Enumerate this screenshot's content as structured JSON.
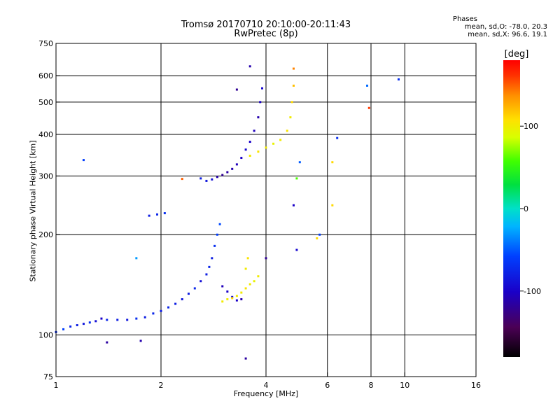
{
  "header": {
    "title_line1": "Tromsø 20170710 20:10:00-20:11:43",
    "title_line2": "RwPretec (8p)"
  },
  "stats": {
    "heading": "Phases",
    "line_o": "mean, sd,O: -78.0, 20.3",
    "line_x": "mean, sd,X:  96.6, 19.1"
  },
  "colorbar": {
    "unit": "[deg]",
    "range": [
      -180,
      180
    ],
    "ticks": [
      {
        "value": 100,
        "label": "100"
      },
      {
        "value": 0,
        "label": "0"
      },
      {
        "value": -100,
        "label": "-100"
      }
    ]
  },
  "chart_data": {
    "type": "scatter",
    "xlabel": "Frequency [MHz]",
    "ylabel": "Stationary phase Virtual Height [km]",
    "xscale": "log",
    "yscale": "log",
    "xlim": [
      1,
      16
    ],
    "ylim": [
      75,
      750
    ],
    "grid": true,
    "x_ticks": [
      {
        "value": 1,
        "label": "1"
      },
      {
        "value": 2,
        "label": "2"
      },
      {
        "value": 4,
        "label": "4"
      },
      {
        "value": 6,
        "label": "6"
      },
      {
        "value": 8,
        "label": "8"
      },
      {
        "value": 10,
        "label": "10"
      },
      {
        "value": 16,
        "label": "16"
      }
    ],
    "y_ticks": [
      {
        "value": 75,
        "label": "75"
      },
      {
        "value": 100,
        "label": "100"
      },
      {
        "value": 200,
        "label": "200"
      },
      {
        "value": 300,
        "label": "300"
      },
      {
        "value": 400,
        "label": "400"
      },
      {
        "value": 500,
        "label": "500"
      },
      {
        "value": 600,
        "label": "600"
      },
      {
        "value": 750,
        "label": "750"
      }
    ],
    "x_gridlines": [
      2,
      4,
      6,
      8,
      10
    ],
    "y_gridlines": [
      100,
      200,
      300,
      400,
      500,
      600
    ],
    "points": [
      {
        "x": 1.0,
        "y": 102,
        "phase": -70
      },
      {
        "x": 1.05,
        "y": 104,
        "phase": -60
      },
      {
        "x": 1.1,
        "y": 106,
        "phase": -75
      },
      {
        "x": 1.15,
        "y": 107,
        "phase": -80
      },
      {
        "x": 1.2,
        "y": 108,
        "phase": -85
      },
      {
        "x": 1.25,
        "y": 109,
        "phase": -70
      },
      {
        "x": 1.3,
        "y": 110,
        "phase": -90
      },
      {
        "x": 1.35,
        "y": 112,
        "phase": -100
      },
      {
        "x": 1.4,
        "y": 111,
        "phase": -75
      },
      {
        "x": 1.5,
        "y": 111,
        "phase": -80
      },
      {
        "x": 1.6,
        "y": 111,
        "phase": -85
      },
      {
        "x": 1.7,
        "y": 112,
        "phase": -70
      },
      {
        "x": 1.8,
        "y": 113,
        "phase": -80
      },
      {
        "x": 1.9,
        "y": 116,
        "phase": -75
      },
      {
        "x": 2.0,
        "y": 118,
        "phase": -80
      },
      {
        "x": 2.1,
        "y": 121,
        "phase": -75
      },
      {
        "x": 2.2,
        "y": 124,
        "phase": -80
      },
      {
        "x": 2.3,
        "y": 128,
        "phase": -85
      },
      {
        "x": 2.4,
        "y": 133,
        "phase": -80
      },
      {
        "x": 2.5,
        "y": 138,
        "phase": -75
      },
      {
        "x": 2.6,
        "y": 145,
        "phase": -90
      },
      {
        "x": 2.7,
        "y": 152,
        "phase": -80
      },
      {
        "x": 2.75,
        "y": 160,
        "phase": -75
      },
      {
        "x": 2.8,
        "y": 170,
        "phase": -80
      },
      {
        "x": 2.85,
        "y": 185,
        "phase": -70
      },
      {
        "x": 2.9,
        "y": 200,
        "phase": -60
      },
      {
        "x": 2.95,
        "y": 215,
        "phase": -55
      },
      {
        "x": 3.0,
        "y": 140,
        "phase": -105
      },
      {
        "x": 3.1,
        "y": 135,
        "phase": -100
      },
      {
        "x": 3.2,
        "y": 130,
        "phase": -95
      },
      {
        "x": 3.3,
        "y": 127,
        "phase": -100
      },
      {
        "x": 3.4,
        "y": 128,
        "phase": -110
      },
      {
        "x": 3.0,
        "y": 126,
        "phase": 100
      },
      {
        "x": 3.1,
        "y": 128,
        "phase": 100
      },
      {
        "x": 3.2,
        "y": 129,
        "phase": 110
      },
      {
        "x": 3.3,
        "y": 131,
        "phase": 100
      },
      {
        "x": 3.4,
        "y": 134,
        "phase": 100
      },
      {
        "x": 3.5,
        "y": 138,
        "phase": 105
      },
      {
        "x": 3.6,
        "y": 142,
        "phase": 100
      },
      {
        "x": 3.7,
        "y": 145,
        "phase": 95
      },
      {
        "x": 3.8,
        "y": 150,
        "phase": 100
      },
      {
        "x": 3.5,
        "y": 158,
        "phase": 100
      },
      {
        "x": 3.55,
        "y": 170,
        "phase": 105
      },
      {
        "x": 2.6,
        "y": 295,
        "phase": -80
      },
      {
        "x": 2.7,
        "y": 290,
        "phase": -85
      },
      {
        "x": 2.8,
        "y": 293,
        "phase": -90
      },
      {
        "x": 2.9,
        "y": 298,
        "phase": -110
      },
      {
        "x": 3.0,
        "y": 302,
        "phase": -120
      },
      {
        "x": 3.1,
        "y": 308,
        "phase": -115
      },
      {
        "x": 3.2,
        "y": 315,
        "phase": -110
      },
      {
        "x": 3.3,
        "y": 325,
        "phase": -105
      },
      {
        "x": 3.4,
        "y": 340,
        "phase": -100
      },
      {
        "x": 3.5,
        "y": 360,
        "phase": -95
      },
      {
        "x": 3.6,
        "y": 380,
        "phase": -100
      },
      {
        "x": 3.7,
        "y": 410,
        "phase": -105
      },
      {
        "x": 3.8,
        "y": 450,
        "phase": -110
      },
      {
        "x": 3.85,
        "y": 500,
        "phase": -100
      },
      {
        "x": 3.9,
        "y": 550,
        "phase": -95
      },
      {
        "x": 3.6,
        "y": 345,
        "phase": 100
      },
      {
        "x": 3.8,
        "y": 355,
        "phase": 105
      },
      {
        "x": 4.0,
        "y": 365,
        "phase": 100
      },
      {
        "x": 4.2,
        "y": 375,
        "phase": 95
      },
      {
        "x": 4.4,
        "y": 385,
        "phase": 100
      },
      {
        "x": 4.6,
        "y": 410,
        "phase": 105
      },
      {
        "x": 4.7,
        "y": 450,
        "phase": 100
      },
      {
        "x": 4.75,
        "y": 500,
        "phase": 110
      },
      {
        "x": 4.8,
        "y": 560,
        "phase": 120
      },
      {
        "x": 4.8,
        "y": 630,
        "phase": 140
      },
      {
        "x": 1.85,
        "y": 228,
        "phase": -80
      },
      {
        "x": 1.95,
        "y": 230,
        "phase": -75
      },
      {
        "x": 2.05,
        "y": 232,
        "phase": -70
      },
      {
        "x": 4.0,
        "y": 170,
        "phase": -120
      },
      {
        "x": 4.9,
        "y": 180,
        "phase": -95
      },
      {
        "x": 3.5,
        "y": 85,
        "phase": -115
      },
      {
        "x": 1.4,
        "y": 95,
        "phase": -115
      },
      {
        "x": 1.75,
        "y": 96,
        "phase": -110
      },
      {
        "x": 7.8,
        "y": 560,
        "phase": -45
      },
      {
        "x": 7.9,
        "y": 480,
        "phase": 160
      },
      {
        "x": 9.6,
        "y": 585,
        "phase": -70
      },
      {
        "x": 6.2,
        "y": 330,
        "phase": 110
      },
      {
        "x": 6.4,
        "y": 390,
        "phase": -70
      },
      {
        "x": 5.0,
        "y": 330,
        "phase": -50
      },
      {
        "x": 5.6,
        "y": 195,
        "phase": 110
      },
      {
        "x": 5.7,
        "y": 200,
        "phase": -60
      },
      {
        "x": 1.2,
        "y": 335,
        "phase": -60
      },
      {
        "x": 2.3,
        "y": 294,
        "phase": 150
      },
      {
        "x": 4.9,
        "y": 295,
        "phase": 60
      },
      {
        "x": 4.8,
        "y": 245,
        "phase": -100
      },
      {
        "x": 6.2,
        "y": 245,
        "phase": 110
      },
      {
        "x": 3.6,
        "y": 640,
        "phase": -110
      },
      {
        "x": 3.3,
        "y": 545,
        "phase": -120
      },
      {
        "x": 1.7,
        "y": 170,
        "phase": -30
      }
    ]
  }
}
